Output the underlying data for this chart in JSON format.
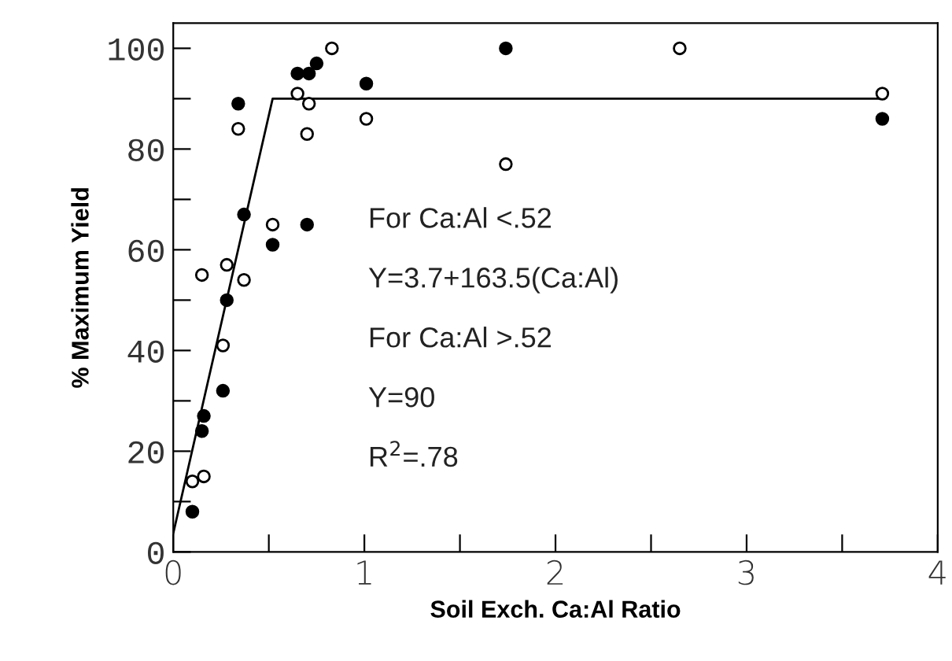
{
  "chart_data": {
    "type": "scatter",
    "xlabel": "Soil Exch. Ca:Al Ratio",
    "ylabel": "% Maximum Yield",
    "xlim": [
      0,
      4
    ],
    "ylim": [
      0,
      105
    ],
    "xticks": [
      0,
      {
        "value": 0.5,
        "label": null
      },
      1,
      {
        "value": 1.5,
        "label": null
      },
      2,
      {
        "value": 2.5,
        "label": null
      },
      3,
      {
        "value": 3.5,
        "label": null
      },
      4
    ],
    "yticks": [
      0,
      {
        "value": 10,
        "label": null
      },
      20,
      {
        "value": 30,
        "label": null
      },
      40,
      {
        "value": 50,
        "label": null
      },
      60,
      {
        "value": 70,
        "label": null
      },
      80,
      {
        "value": 90,
        "label": null
      },
      100
    ],
    "grid": false,
    "marker": "circle",
    "series": [
      {
        "color": "#000000",
        "x": [
          0.1,
          0.16,
          0.15,
          0.26,
          0.28,
          0.34,
          0.37,
          0.52,
          0.65,
          0.71,
          0.75,
          0.7,
          1.01,
          1.74,
          3.71
        ],
        "values": [
          8,
          27,
          24,
          32,
          50,
          89,
          67,
          61,
          95,
          95,
          97,
          65,
          93,
          100,
          86
        ]
      },
      {
        "color": "#ffffff",
        "x": [
          0.1,
          0.16,
          0.15,
          0.26,
          0.28,
          0.34,
          0.37,
          0.52,
          0.65,
          0.71,
          0.7,
          0.83,
          1.01,
          1.74,
          2.65,
          3.71
        ],
        "values": [
          14,
          15,
          55,
          41,
          57,
          84,
          54,
          65,
          91,
          89,
          83,
          100,
          86,
          77,
          100,
          91
        ]
      },
      {
        "type": "line",
        "color": "#000000",
        "marker": "none",
        "x": [
          0,
          0.52,
          3.71
        ],
        "values": [
          3.7,
          90,
          90
        ]
      }
    ],
    "annotations": [
      "For Ca:Al <.52",
      "Y=3.7+163.5(Ca:Al)",
      "For Ca:Al >.52",
      "Y=90",
      "R$^{2}$=.78"
    ]
  }
}
